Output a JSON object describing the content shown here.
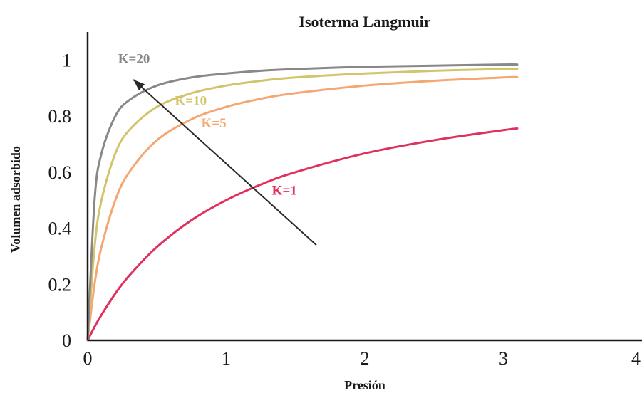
{
  "chart_data": {
    "type": "line",
    "title": "Isoterma Langmuir",
    "xlabel": "Presión",
    "ylabel": "Volumen adsorbido",
    "xlim": [
      0,
      4
    ],
    "ylim": [
      0,
      1.1
    ],
    "x_ticks": [
      0,
      1,
      2,
      3,
      4
    ],
    "x_tick_labels": [
      "0",
      "1",
      "2",
      "3",
      "4"
    ],
    "y_ticks": [
      0,
      0.2,
      0.4,
      0.6,
      0.8,
      1
    ],
    "y_tick_labels": [
      "0",
      "0.2",
      "0.4",
      "0.6",
      "0.8",
      "1"
    ],
    "grid": false,
    "legend": "inline labels",
    "x": [
      0,
      0.05,
      0.1,
      0.2,
      0.3,
      0.5,
      0.75,
      1,
      1.25,
      1.5,
      2,
      2.5,
      3,
      3.1
    ],
    "series": [
      {
        "name": "K=1",
        "color": "#e0305c",
        "values": [
          0,
          0.048,
          0.091,
          0.167,
          0.231,
          0.333,
          0.429,
          0.5,
          0.556,
          0.6,
          0.667,
          0.714,
          0.75,
          0.756
        ]
      },
      {
        "name": "K=5",
        "color": "#f4a673",
        "values": [
          0,
          0.2,
          0.333,
          0.5,
          0.6,
          0.714,
          0.789,
          0.833,
          0.862,
          0.882,
          0.909,
          0.926,
          0.938,
          0.939
        ]
      },
      {
        "name": "K=10",
        "color": "#d2c46b",
        "values": [
          0,
          0.333,
          0.5,
          0.667,
          0.75,
          0.833,
          0.882,
          0.909,
          0.926,
          0.938,
          0.952,
          0.962,
          0.968,
          0.969
        ]
      },
      {
        "name": "K=20",
        "color": "#888888",
        "values": [
          0,
          0.5,
          0.667,
          0.8,
          0.857,
          0.909,
          0.938,
          0.952,
          0.962,
          0.968,
          0.976,
          0.98,
          0.984,
          0.984
        ]
      }
    ],
    "label_positions": [
      {
        "name": "K=1",
        "x": 1.33,
        "y": 0.52
      },
      {
        "name": "K=5",
        "x": 0.82,
        "y": 0.76
      },
      {
        "name": "K=10",
        "x": 0.63,
        "y": 0.84
      },
      {
        "name": "K=20",
        "x": 0.22,
        "y": 0.99
      }
    ],
    "arrow": {
      "from": [
        1.65,
        0.34
      ],
      "to": [
        0.33,
        0.93
      ]
    }
  }
}
